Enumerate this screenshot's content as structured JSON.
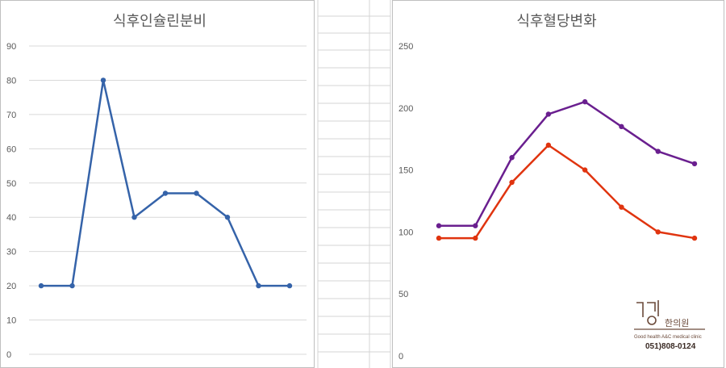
{
  "chart_data": [
    {
      "type": "line",
      "title": "식후인슐린분비",
      "categories": [
        "",
        "",
        "",
        "",
        "",
        "",
        "",
        "",
        ""
      ],
      "ylim": [
        0,
        90
      ],
      "yticks": [
        0,
        10,
        20,
        30,
        40,
        50,
        60,
        70,
        80,
        90
      ],
      "grid": true,
      "legend": "none",
      "series": [
        {
          "color": "#3563a9",
          "values": [
            20,
            20,
            80,
            40,
            47,
            47,
            40,
            20,
            20
          ]
        }
      ]
    },
    {
      "type": "line",
      "title": "식후혈당변화",
      "categories": [
        "",
        "",
        "",
        "",
        "",
        "",
        "",
        ""
      ],
      "ylim": [
        0,
        250
      ],
      "yticks": [
        0,
        50,
        100,
        150,
        200,
        250
      ],
      "grid": false,
      "legend": "none",
      "series": [
        {
          "color": "#6a1f8f",
          "values": [
            105,
            105,
            160,
            195,
            205,
            185,
            165,
            155
          ]
        },
        {
          "color": "#e0340f",
          "values": [
            95,
            95,
            140,
            170,
            150,
            120,
            100,
            95
          ]
        }
      ]
    }
  ],
  "logo": {
    "text_ko": "한의원",
    "tagline": "Good health A&C medical clinic",
    "phone": "051)808-0124"
  },
  "colors": {
    "gridline": "#d9d9d9",
    "spreadsheet_line": "#d4d4d4",
    "panel_border": "#bfbfbf",
    "logo": "#6b4a3a"
  }
}
